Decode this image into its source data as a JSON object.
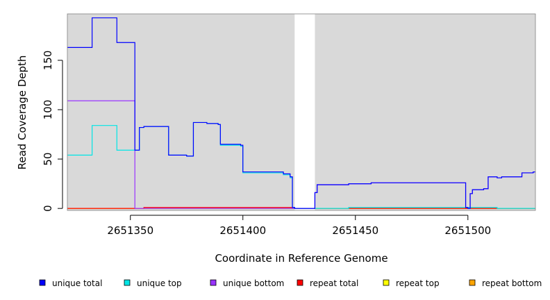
{
  "chart_data": {
    "type": "line",
    "title": "",
    "xlabel": "Coordinate in Reference Genome",
    "ylabel": "Read Coverage Depth",
    "xlim": [
      2651322,
      2651530
    ],
    "ylim": [
      -2,
      197
    ],
    "x_ticks": [
      2651350,
      2651400,
      2651450,
      2651500
    ],
    "x_tick_labels": [
      "2651350",
      "2651400",
      "2651450",
      "2651500"
    ],
    "y_ticks": [
      0,
      50,
      100,
      150
    ],
    "y_tick_labels": [
      "0",
      "50",
      "100",
      "150"
    ],
    "grid": false,
    "step": true,
    "coverage_gap": [
      2651423,
      2651432
    ],
    "legend_position": "bottom",
    "series": [
      {
        "name": "unique total",
        "color": "#0000ff",
        "x": [
          2651322,
          2651333,
          2651344,
          2651352,
          2651354,
          2651356,
          2651367,
          2651375,
          2651378,
          2651384,
          2651389,
          2651390,
          2651399,
          2651400,
          2651418,
          2651421,
          2651422,
          2651423,
          2651432,
          2651433,
          2651434,
          2651447,
          2651457,
          2651499,
          2651500,
          2651501,
          2651502,
          2651507,
          2651509,
          2651513,
          2651515,
          2651524,
          2651529,
          2651530
        ],
        "y": [
          163,
          193,
          168,
          59,
          82,
          83,
          54,
          53,
          87,
          86,
          85,
          65,
          64,
          37,
          35,
          32,
          1,
          0,
          16,
          24,
          24,
          25,
          26,
          1,
          0,
          15,
          19,
          20,
          32,
          31,
          32,
          36,
          37,
          37
        ]
      },
      {
        "name": "unique top",
        "color": "#00e5e5",
        "x": [
          2651322,
          2651333,
          2651344,
          2651354,
          2651356,
          2651367,
          2651375,
          2651378,
          2651384,
          2651389,
          2651390,
          2651399,
          2651400,
          2651418,
          2651421,
          2651422,
          2651423,
          2651432,
          2651447,
          2651499,
          2651513,
          2651530
        ],
        "y": [
          54,
          84,
          59,
          82,
          83,
          54,
          53,
          87,
          86,
          85,
          64,
          63,
          36,
          34,
          31,
          1,
          0,
          0,
          1,
          1,
          0,
          0
        ]
      },
      {
        "name": "unique bottom",
        "color": "#9933ff",
        "x": [
          2651322,
          2651352,
          2651423,
          2651432,
          2651433,
          2651447,
          2651457,
          2651499,
          2651500,
          2651501,
          2651502,
          2651507,
          2651509,
          2651513,
          2651515,
          2651524,
          2651529,
          2651530
        ],
        "y": [
          109,
          0,
          0,
          16,
          24,
          25,
          26,
          1,
          0,
          15,
          19,
          20,
          32,
          31,
          32,
          36,
          37,
          37
        ]
      },
      {
        "name": "repeat total",
        "color": "#ff0000",
        "x": [
          2651322,
          2651356,
          2651423,
          2651432,
          2651530
        ],
        "y": [
          0,
          1,
          0,
          0,
          0
        ]
      },
      {
        "name": "repeat top",
        "color": "#ffff00",
        "x": [
          2651322,
          2651530
        ],
        "y": [
          0,
          0
        ]
      },
      {
        "name": "repeat bottom",
        "color": "#ffa500",
        "x": [
          2651322,
          2651530
        ],
        "y": [
          0,
          0
        ]
      }
    ]
  }
}
